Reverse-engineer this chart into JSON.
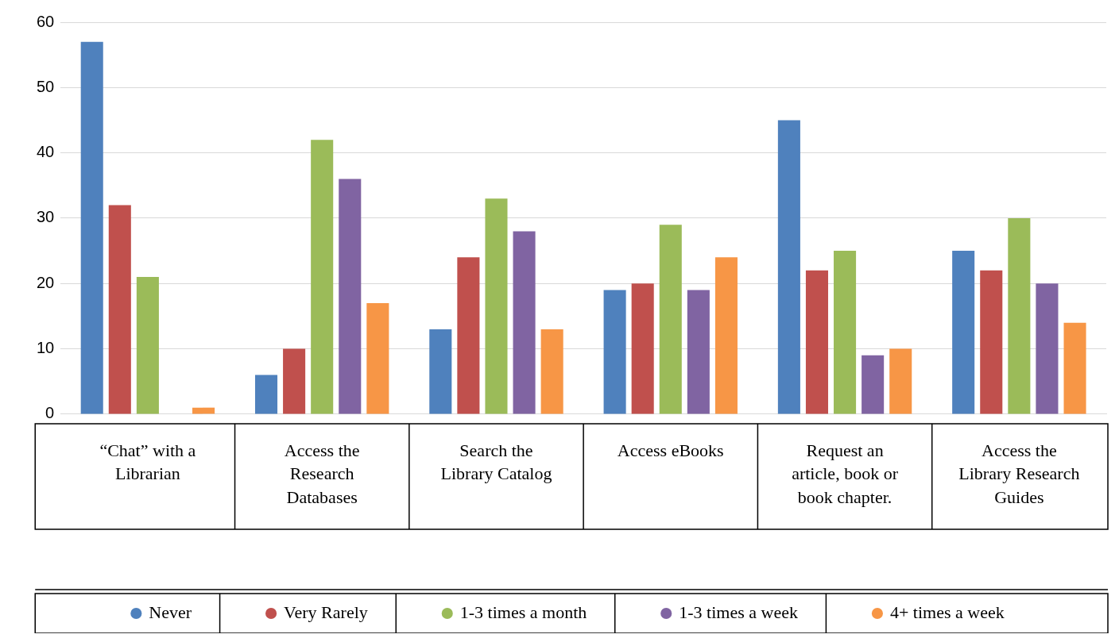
{
  "chart_data": {
    "type": "bar",
    "categories": [
      "“Chat” with a Librarian",
      "Access the Research Databases",
      "Search the Library Catalog",
      "Access eBooks",
      "Request an article, book or book chapter.",
      "Access the Library Research Guides"
    ],
    "series": [
      {
        "name": "Never",
        "color": "#4f81bd",
        "values": [
          57,
          6,
          13,
          19,
          45,
          25
        ]
      },
      {
        "name": "Very Rarely",
        "color": "#c0504d",
        "values": [
          32,
          10,
          24,
          20,
          22,
          22
        ]
      },
      {
        "name": "1-3 times a month",
        "color": "#9bbb59",
        "values": [
          21,
          42,
          33,
          29,
          25,
          30
        ]
      },
      {
        "name": "1-3 times a week",
        "color": "#8064a2",
        "values": [
          0,
          36,
          28,
          19,
          9,
          20
        ]
      },
      {
        "name": "4+ times a week",
        "color": "#f79646",
        "values": [
          1,
          17,
          13,
          24,
          10,
          14
        ]
      }
    ],
    "ylim": [
      0,
      60
    ],
    "yticks": [
      0,
      10,
      20,
      30,
      40,
      50,
      60
    ],
    "grid": "y",
    "legend": "bottom"
  }
}
